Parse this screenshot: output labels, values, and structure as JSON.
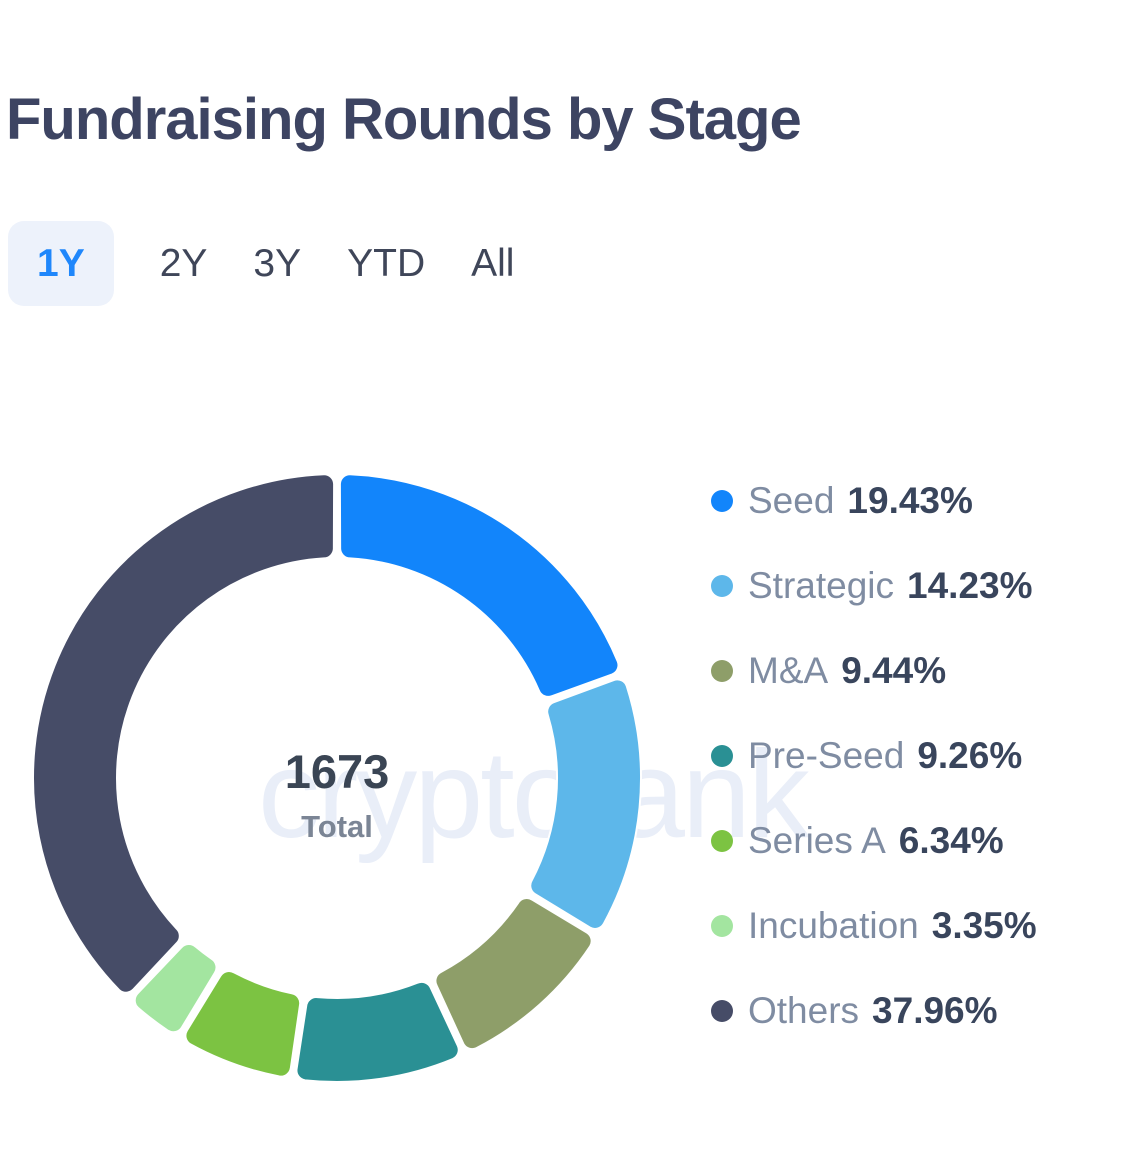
{
  "title": "Fundraising Rounds by Stage",
  "watermark": "cryptorank",
  "tabs": [
    {
      "label": "1Y",
      "active": true
    },
    {
      "label": "2Y",
      "active": false
    },
    {
      "label": "3Y",
      "active": false
    },
    {
      "label": "YTD",
      "active": false
    },
    {
      "label": "All",
      "active": false
    }
  ],
  "chart_data": {
    "type": "pie",
    "donut": true,
    "title": "Fundraising Rounds by Stage",
    "total": "1673",
    "total_label": "Total",
    "legend_position": "right",
    "start_angle": "top",
    "direction": "clockwise",
    "series": [
      {
        "name": "Seed",
        "value": 19.43,
        "color": "#1285fb"
      },
      {
        "name": "Strategic",
        "value": 14.23,
        "color": "#5db7ea"
      },
      {
        "name": "M&A",
        "value": 9.44,
        "color": "#8e9e69"
      },
      {
        "name": "Pre-Seed",
        "value": 9.26,
        "color": "#2a9094"
      },
      {
        "name": "Series A",
        "value": 6.34,
        "color": "#7cc342"
      },
      {
        "name": "Incubation",
        "value": 3.35,
        "color": "#a3e5a0"
      },
      {
        "name": "Others",
        "value": 37.96,
        "color": "#464c67"
      }
    ]
  }
}
